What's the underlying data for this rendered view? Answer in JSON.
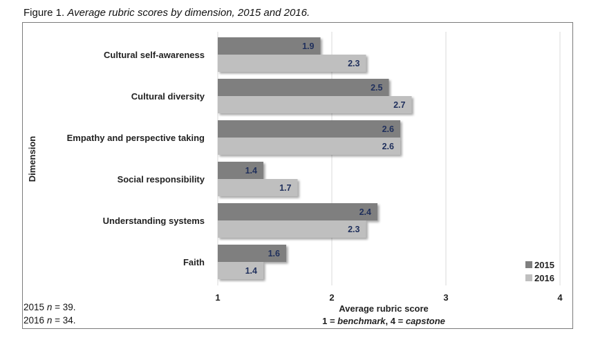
{
  "caption": {
    "prefix": "Figure 1.",
    "title": "Average rubric scores by dimension, 2015 and 2016."
  },
  "notes": [
    {
      "year": "2015",
      "var": "n",
      "rest": " = 39."
    },
    {
      "year": "2016",
      "var": "n",
      "rest": " = 34."
    }
  ],
  "chart_data": {
    "type": "bar",
    "orientation": "horizontal",
    "categories": [
      "Cultural self-awareness",
      "Cultural diversity",
      "Empathy and perspective taking",
      "Social responsibility",
      "Understanding systems",
      "Faith"
    ],
    "series": [
      {
        "name": "2015",
        "values": [
          1.9,
          2.5,
          2.6,
          1.4,
          2.4,
          1.6
        ],
        "labels": [
          "1.9",
          "2.5",
          "2.6",
          "1.4",
          "2.4",
          "1.6"
        ],
        "color": "#7f7f7f"
      },
      {
        "name": "2016",
        "values": [
          2.3,
          2.7,
          2.6,
          1.7,
          2.3,
          1.4
        ],
        "labels": [
          "2.3",
          "2.7",
          "2.6",
          "1.7",
          "2.3",
          "1.4"
        ],
        "color": "#bfbfbf"
      }
    ],
    "xlim": [
      1,
      4
    ],
    "xticks": [
      "1",
      "2",
      "3",
      "4"
    ],
    "xlabel": "Average rubric score",
    "xlabel_note": {
      "a": "1 = ",
      "b": "benchmark",
      "c": ", 4 = ",
      "d": "capstone"
    },
    "ylabel": "Dimension",
    "grid": true,
    "legend_position": "bottom-right"
  }
}
